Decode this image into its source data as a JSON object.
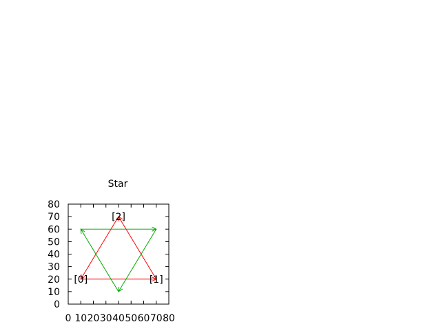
{
  "chart_data": {
    "type": "line",
    "title": "Star",
    "xlabel": "",
    "ylabel": "",
    "xlim": [
      0,
      80
    ],
    "ylim": [
      0,
      80
    ],
    "xticks": [
      0,
      10,
      20,
      30,
      40,
      50,
      60,
      70,
      80
    ],
    "yticks": [
      0,
      10,
      20,
      30,
      40,
      50,
      60,
      70,
      80
    ],
    "grid": false,
    "legend": "none",
    "series": [
      {
        "color": "#ff0000",
        "arrows": true,
        "points": [
          [
            10,
            20
          ],
          [
            70,
            20
          ],
          [
            40,
            70
          ],
          [
            10,
            20
          ]
        ]
      },
      {
        "color": "#00aa00",
        "arrows": true,
        "points": [
          [
            10,
            60
          ],
          [
            70,
            60
          ],
          [
            40,
            10
          ],
          [
            10,
            60
          ]
        ]
      }
    ],
    "annotations": [
      {
        "text": "[0]",
        "x": 10,
        "y": 20
      },
      {
        "text": "[1]",
        "x": 70,
        "y": 20
      },
      {
        "text": "[2]",
        "x": 40,
        "y": 70
      }
    ]
  }
}
